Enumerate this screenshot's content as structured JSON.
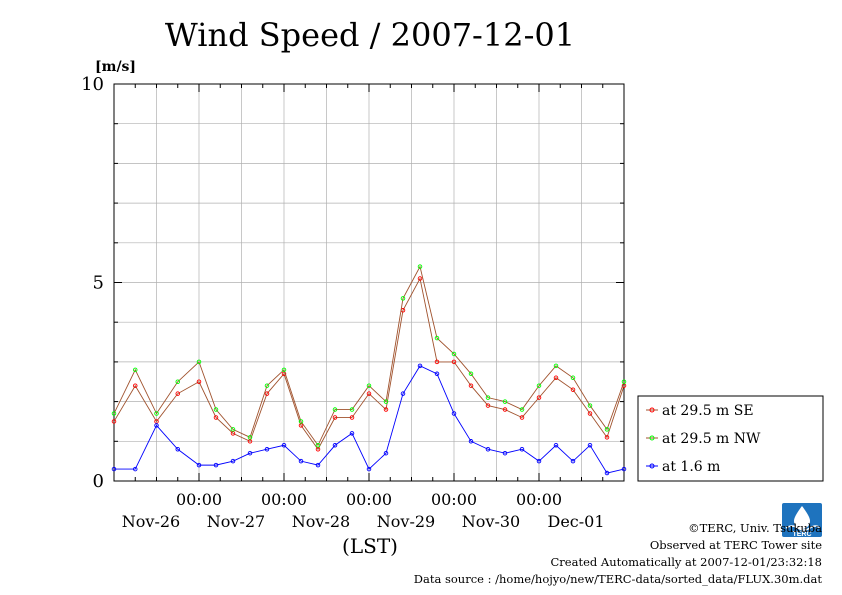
{
  "chart_data": {
    "type": "line",
    "title": "Wind Speed / 2007-12-01",
    "ylabel": "[m/s]",
    "xlabel": "(LST)",
    "ylim": [
      0,
      10
    ],
    "y_major_ticks": [
      0,
      5,
      10
    ],
    "x_range_days": [
      0,
      6
    ],
    "x_ticks": [
      {
        "pos": 1,
        "time": "00:00",
        "date": "Nov-26"
      },
      {
        "pos": 2,
        "time": "00:00",
        "date": "Nov-27"
      },
      {
        "pos": 3,
        "time": "00:00",
        "date": "Nov-28"
      },
      {
        "pos": 4,
        "time": "00:00",
        "date": "Nov-29"
      },
      {
        "pos": 5,
        "time": "00:00",
        "date": "Nov-30"
      },
      {
        "pos": 6,
        "time": "",
        "date": "Dec-01"
      }
    ],
    "grid": true,
    "legend_position": "right-bottom",
    "series": [
      {
        "name": "at 29.5 m SE",
        "color": "#ff0000",
        "line_color": "#a0522d",
        "x": [
          0,
          0.25,
          0.5,
          0.75,
          1,
          1.2,
          1.4,
          1.6,
          1.8,
          2,
          2.2,
          2.4,
          2.6,
          2.8,
          3,
          3.2,
          3.4,
          3.6,
          3.8,
          4,
          4.2,
          4.4,
          4.6,
          4.8,
          5,
          5.2,
          5.4,
          5.6,
          5.8,
          6
        ],
        "values": [
          1.5,
          2.4,
          1.5,
          2.2,
          2.5,
          1.6,
          1.2,
          1.0,
          2.2,
          2.7,
          1.4,
          0.8,
          1.6,
          1.6,
          2.2,
          1.8,
          4.3,
          5.1,
          3.0,
          3.0,
          2.4,
          1.9,
          1.8,
          1.6,
          2.1,
          2.6,
          2.3,
          1.7,
          1.1,
          2.4
        ]
      },
      {
        "name": "at 29.5 m NW",
        "color": "#00ff00",
        "line_color": "#a0522d",
        "x": [
          0,
          0.25,
          0.5,
          0.75,
          1,
          1.2,
          1.4,
          1.6,
          1.8,
          2,
          2.2,
          2.4,
          2.6,
          2.8,
          3,
          3.2,
          3.4,
          3.6,
          3.8,
          4,
          4.2,
          4.4,
          4.6,
          4.8,
          5,
          5.2,
          5.4,
          5.6,
          5.8,
          6
        ],
        "values": [
          1.7,
          2.8,
          1.7,
          2.5,
          3.0,
          1.8,
          1.3,
          1.1,
          2.4,
          2.8,
          1.5,
          0.9,
          1.8,
          1.8,
          2.4,
          2.0,
          4.6,
          5.4,
          3.6,
          3.2,
          2.7,
          2.1,
          2.0,
          1.8,
          2.4,
          2.9,
          2.6,
          1.9,
          1.3,
          2.5
        ]
      },
      {
        "name": "at 1.6 m",
        "color": "#0000ff",
        "line_color": "#0000ff",
        "x": [
          0,
          0.25,
          0.5,
          0.75,
          1,
          1.2,
          1.4,
          1.6,
          1.8,
          2,
          2.2,
          2.4,
          2.6,
          2.8,
          3,
          3.2,
          3.4,
          3.6,
          3.8,
          4,
          4.2,
          4.4,
          4.6,
          4.8,
          5,
          5.2,
          5.4,
          5.6,
          5.8,
          6
        ],
        "values": [
          0.3,
          0.3,
          1.4,
          0.8,
          0.4,
          0.4,
          0.5,
          0.7,
          0.8,
          0.9,
          0.5,
          0.4,
          0.9,
          1.2,
          0.3,
          0.7,
          2.2,
          2.9,
          2.7,
          1.7,
          1.0,
          0.8,
          0.7,
          0.8,
          0.5,
          0.9,
          0.5,
          0.9,
          0.2,
          0.3
        ]
      }
    ]
  },
  "footer": {
    "copyright": "©TERC, Univ. Tsukuba",
    "observed": "Observed at TERC Tower site",
    "created": "Created Automatically at 2007-12-01/23:32:18",
    "source": "Data source : /home/hojyo/new/TERC-data/sorted_data/FLUX.30m.dat",
    "logo_text": "TERC",
    "logo_color": "#1e73be"
  }
}
